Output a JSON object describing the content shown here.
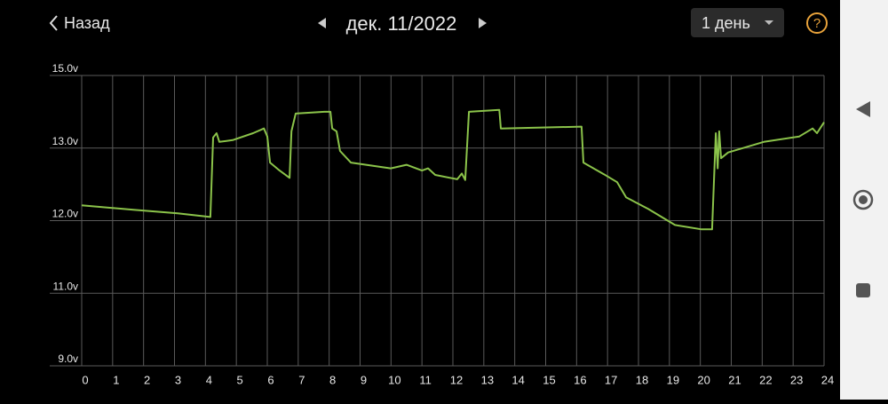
{
  "header": {
    "back": "Назад",
    "date": "дек. 11/2022",
    "period": "1 день",
    "help": "?"
  },
  "chart_data": {
    "type": "line",
    "color": "#8bc34a",
    "grid": true,
    "xlim": [
      0,
      24
    ],
    "xticks": [
      0,
      1,
      2,
      3,
      4,
      5,
      6,
      7,
      8,
      9,
      10,
      11,
      12,
      13,
      14,
      15,
      16,
      17,
      18,
      19,
      20,
      21,
      22,
      23,
      24
    ],
    "ylim": [
      9,
      15
    ],
    "yticks": [
      {
        "value": 9,
        "label": "9.0v"
      },
      {
        "value": 11,
        "label": "11.0v"
      },
      {
        "value": 12,
        "label": "12.0v"
      },
      {
        "value": 13,
        "label": "13.0v"
      },
      {
        "value": 15,
        "label": "15.0v"
      }
    ],
    "x": [
      0,
      1.67,
      3.1,
      4.16,
      4.25,
      4.36,
      4.45,
      4.88,
      5.54,
      5.89,
      6.0,
      6.09,
      6.4,
      6.72,
      6.78,
      6.92,
      7.84,
      8.04,
      8.1,
      8.24,
      8.35,
      8.7,
      9.99,
      10.5,
      11.0,
      11.2,
      11.43,
      12.14,
      12.29,
      12.4,
      12.52,
      13.5,
      13.55,
      14.58,
      16.16,
      16.22,
      16.88,
      17.31,
      17.6,
      18.32,
      19.18,
      20.04,
      20.38,
      20.5,
      20.56,
      20.61,
      20.67,
      20.9,
      22.05,
      23.2,
      23.63,
      23.77,
      24.0
    ],
    "values": [
      12.21,
      12.15,
      12.1,
      12.05,
      13.29,
      13.41,
      13.17,
      13.22,
      13.41,
      13.54,
      13.32,
      12.8,
      12.69,
      12.59,
      13.46,
      13.95,
      14.0,
      14.0,
      13.54,
      13.46,
      12.96,
      12.8,
      12.72,
      12.77,
      12.69,
      12.72,
      12.63,
      12.57,
      12.65,
      12.56,
      14.0,
      14.05,
      13.54,
      13.56,
      13.59,
      12.8,
      12.64,
      12.53,
      12.32,
      12.16,
      11.94,
      11.88,
      11.88,
      13.41,
      12.72,
      13.46,
      12.86,
      12.94,
      13.17,
      13.32,
      13.54,
      13.41,
      13.71
    ]
  }
}
